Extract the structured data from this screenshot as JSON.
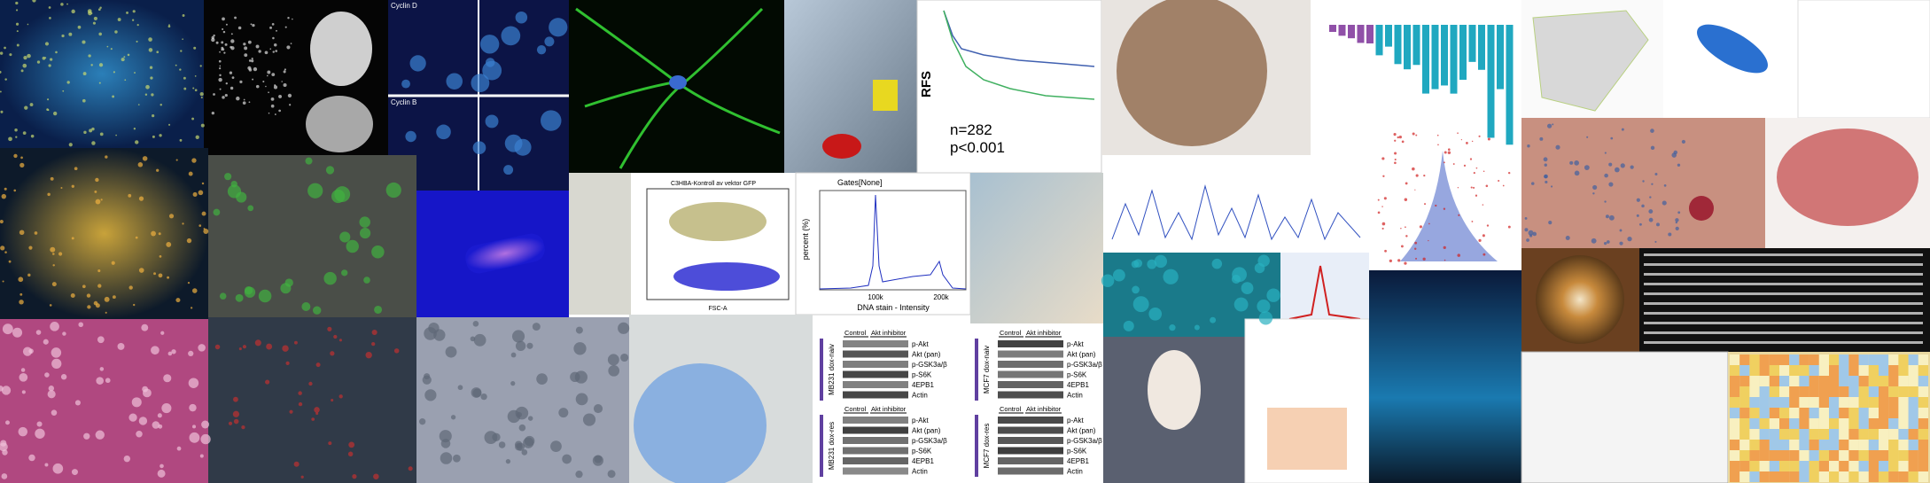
{
  "cyclin": {
    "top_label": "Cyclin D",
    "bottom_label": "Cyclin B"
  },
  "survival_plot": {
    "y_label": "RFS",
    "n": "n=282",
    "p": "p<0.001"
  },
  "flow_plot": {
    "title": "C3HBA-Kontroll av vektor GFP",
    "x_label": "FSC-A"
  },
  "histogram": {
    "title": "Gates[None]",
    "y_label": "percent (%)",
    "x_label": "DNA stain - Intensity",
    "x_ticks": [
      "100k",
      "200k"
    ]
  },
  "blots": [
    {
      "name": "MB231 dox-naiv",
      "header": [
        "Control",
        "Akt inhibitor"
      ],
      "rows": [
        "p-Akt",
        "Akt (pan)",
        "p-GSK3a/β",
        "p-S6K",
        "4EPB1",
        "Actin"
      ]
    },
    {
      "name": "MB231 dox-res",
      "header": [
        "Control",
        "Akt inhibitor"
      ],
      "rows": [
        "p-Akt",
        "Akt (pan)",
        "p-GSK3a/β",
        "p-S6K",
        "4EPB1",
        "Actin"
      ]
    },
    {
      "name": "MCF7 dox-naiv",
      "header": [
        "Control",
        "Akt inhibitor"
      ],
      "rows": [
        "p-Akt",
        "Akt (pan)",
        "p-GSK3a/β",
        "p-S6K",
        "4EPB1",
        "Actin"
      ]
    },
    {
      "name": "MCF7 dox-res",
      "header": [
        "Control",
        "Akt inhibitor"
      ],
      "rows": [
        "p-Akt",
        "Akt (pan)",
        "p-GSK3a/β",
        "p-S6K",
        "4EPB1",
        "Actin"
      ]
    }
  ]
}
